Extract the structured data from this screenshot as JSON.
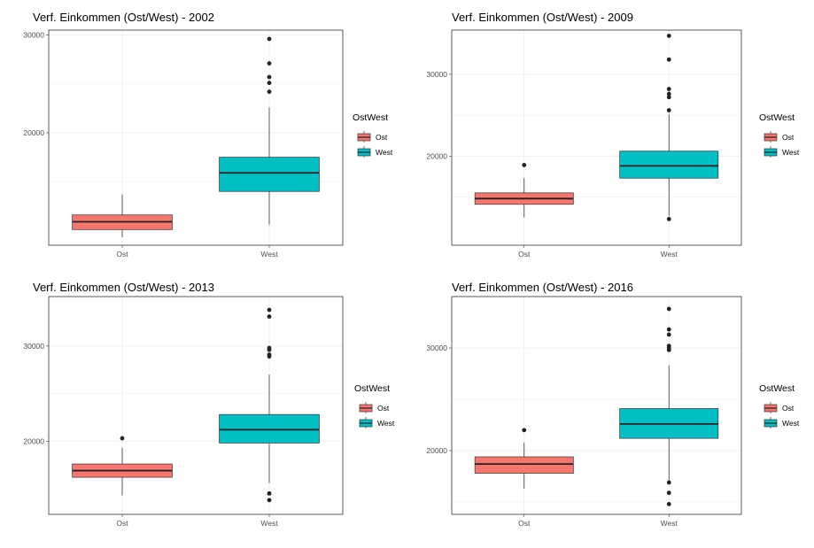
{
  "chart_data": [
    {
      "type": "box",
      "title": "Verf. Einkommen (Ost/West) - 2002",
      "categories": [
        "Ost",
        "West"
      ],
      "ylim": [
        8500,
        30500
      ],
      "yticks": [
        {
          "value": 20000,
          "label": "20000"
        },
        {
          "value": 30000,
          "label": "30000"
        }
      ],
      "boxes": [
        {
          "category": "Ost",
          "q1": 10100,
          "median": 10900,
          "q3": 11600,
          "whisker_low": 9300,
          "whisker_high": 13700,
          "outliers": []
        },
        {
          "category": "West",
          "q1": 14000,
          "median": 15900,
          "q3": 17500,
          "whisker_low": 10600,
          "whisker_high": 22600,
          "outliers": [
            24200,
            25100,
            25700,
            27100,
            29600
          ]
        }
      ],
      "legend": {
        "title": "OstWest",
        "entries": [
          "Ost",
          "West"
        ]
      }
    },
    {
      "type": "box",
      "title": "Verf. Einkommen (Ost/West) - 2009",
      "categories": [
        "Ost",
        "West"
      ],
      "ylim": [
        9100,
        35400
      ],
      "yticks": [
        {
          "value": 20000,
          "label": "20000"
        },
        {
          "value": 30000,
          "label": "30000"
        }
      ],
      "boxes": [
        {
          "category": "Ost",
          "q1": 14100,
          "median": 14800,
          "q3": 15500,
          "whisker_low": 12500,
          "whisker_high": 17300,
          "outliers": [
            18900
          ]
        },
        {
          "category": "West",
          "q1": 17300,
          "median": 18800,
          "q3": 20600,
          "whisker_low": 12700,
          "whisker_high": 25100,
          "outliers": [
            12300,
            25600,
            27200,
            27600,
            28200,
            31800,
            34700
          ]
        }
      ],
      "legend": {
        "title": "OstWest",
        "entries": [
          "Ost",
          "West"
        ]
      }
    },
    {
      "type": "box",
      "title": "Verf. Einkommen (Ost/West) - 2013",
      "categories": [
        "Ost",
        "West"
      ],
      "ylim": [
        12300,
        35200
      ],
      "yticks": [
        {
          "value": 20000,
          "label": "20000"
        },
        {
          "value": 30000,
          "label": "30000"
        }
      ],
      "boxes": [
        {
          "category": "Ost",
          "q1": 16200,
          "median": 16900,
          "q3": 17600,
          "whisker_low": 14300,
          "whisker_high": 19300,
          "outliers": [
            20300
          ]
        },
        {
          "category": "West",
          "q1": 19800,
          "median": 21200,
          "q3": 22800,
          "whisker_low": 15600,
          "whisker_high": 27000,
          "outliers": [
            13800,
            14500,
            28900,
            29100,
            29600,
            29800,
            33100,
            33800
          ]
        }
      ],
      "legend": {
        "title": "OstWest",
        "entries": [
          "Ost",
          "West"
        ]
      }
    },
    {
      "type": "box",
      "title": "Verf. Einkommen (Ost/West) - 2016",
      "categories": [
        "Ost",
        "West"
      ],
      "ylim": [
        13800,
        35000
      ],
      "yticks": [
        {
          "value": 20000,
          "label": "20000"
        },
        {
          "value": 30000,
          "label": "30000"
        }
      ],
      "boxes": [
        {
          "category": "Ost",
          "q1": 17800,
          "median": 18700,
          "q3": 19400,
          "whisker_low": 16300,
          "whisker_high": 20800,
          "outliers": [
            22000
          ]
        },
        {
          "category": "West",
          "q1": 21200,
          "median": 22600,
          "q3": 24100,
          "whisker_low": 16900,
          "whisker_high": 28300,
          "outliers": [
            14800,
            15900,
            16900,
            29800,
            30000,
            30200,
            31300,
            31800,
            33800
          ]
        }
      ],
      "legend": {
        "title": "OstWest",
        "entries": [
          "Ost",
          "West"
        ]
      }
    }
  ],
  "colors": {
    "Ost": "#F8766D",
    "West": "#00BFC4"
  }
}
